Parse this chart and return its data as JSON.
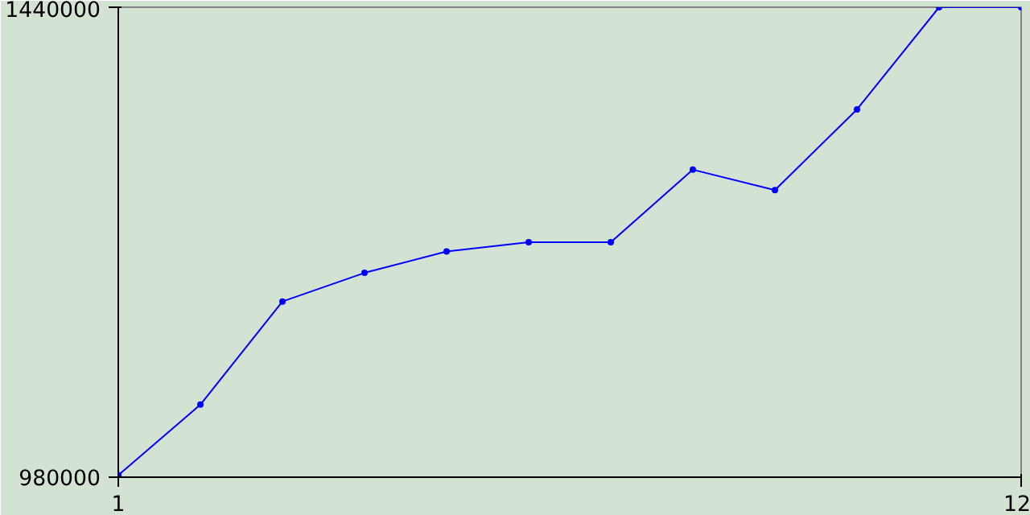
{
  "chart_data": {
    "type": "line",
    "x": [
      1,
      2,
      3,
      4,
      5,
      6,
      7,
      8,
      9,
      10,
      11,
      12
    ],
    "series": [
      {
        "color": "#0000ff",
        "values": [
          982000,
          1051000,
          1152000,
          1180000,
          1201000,
          1210000,
          1210000,
          1281000,
          1261000,
          1340000,
          1440000,
          1440000
        ]
      }
    ],
    "xlim": [
      1,
      12
    ],
    "ylim": [
      980000,
      1440000
    ],
    "xticks": [
      1,
      12
    ],
    "yticks": [
      980000,
      1440000
    ],
    "marker": "circle",
    "line_style": "solid"
  }
}
